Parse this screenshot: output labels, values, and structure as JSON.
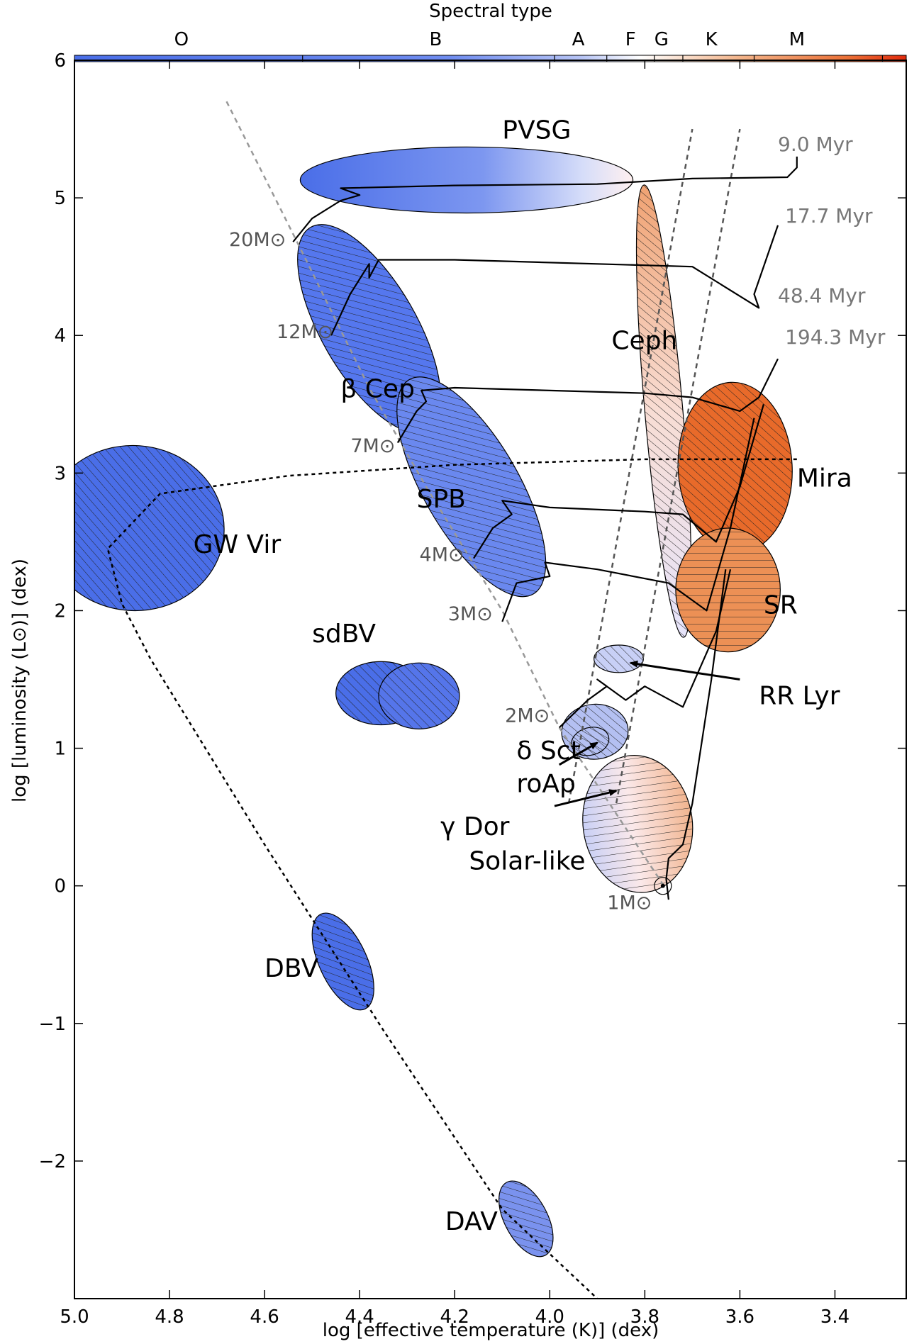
{
  "chart_data": {
    "type": "scatter",
    "title": "",
    "xlabel": "log [effective temperature (K)] (dex)",
    "ylabel": "log [luminosity (L⊙)] (dex)",
    "spectral_label": "Spectral type",
    "xlim": [
      5.0,
      3.25
    ],
    "ylim": [
      -3.0,
      6.0
    ],
    "x_inverted": true,
    "x_ticks": [
      5.0,
      4.8,
      4.6,
      4.4,
      4.2,
      4.0,
      3.8,
      3.6,
      3.4
    ],
    "x_tick_labels": [
      "5.0",
      "4.8",
      "4.6",
      "4.4",
      "4.2",
      "4.0",
      "3.8",
      "3.6",
      "3.4"
    ],
    "y_ticks": [
      6,
      5,
      4,
      3,
      2,
      1,
      0,
      -1,
      -2
    ],
    "y_tick_labels": [
      "6",
      "5",
      "4",
      "3",
      "2",
      "1",
      "0",
      "−1",
      "−2"
    ],
    "spectral_types": [
      {
        "label": "O",
        "x": 4.775
      },
      {
        "label": "B",
        "x": 4.24
      },
      {
        "label": "A",
        "x": 3.94
      },
      {
        "label": "F",
        "x": 3.83
      },
      {
        "label": "G",
        "x": 3.765
      },
      {
        "label": "K",
        "x": 3.66
      },
      {
        "label": "M",
        "x": 3.48
      }
    ],
    "spectral_boundaries": [
      4.52,
      3.99,
      3.88,
      3.78,
      3.72,
      3.57,
      3.3
    ],
    "colors": {
      "hot": "#4a6ee8",
      "mid": "#ffffff",
      "cool": "#e85f1c",
      "m_end": "#e22a0c"
    },
    "regions": [
      {
        "name": "PVSG",
        "x": 4.175,
        "y": 5.13,
        "w": 0.35,
        "h": 0.24,
        "angle": 0,
        "fill": "gradient-hot",
        "hatch": "none"
      },
      {
        "name": "β Cep",
        "x": 4.38,
        "y": 4.05,
        "w": 0.1,
        "h": 0.85,
        "angle": -30,
        "fill": "#5577ee",
        "hatch": "diag"
      },
      {
        "name": "SPB",
        "x": 4.165,
        "y": 2.9,
        "w": 0.1,
        "h": 0.9,
        "angle": -30,
        "fill": "#6a88ef",
        "hatch": "diag"
      },
      {
        "name": "Ceph",
        "x": 3.76,
        "y": 3.45,
        "w": 0.04,
        "h": 1.65,
        "angle": -5,
        "fill": "gradient-ceph",
        "hatch": "diag"
      },
      {
        "name": "GW Vir",
        "x": 4.875,
        "y": 2.6,
        "w": 0.19,
        "h": 0.6,
        "angle": 4,
        "fill": "#4a6ee8",
        "hatch": "diag"
      },
      {
        "name": "sdBV",
        "x": 4.355,
        "y": 1.4,
        "w": 0.095,
        "h": 0.23,
        "angle": 0,
        "fill": "#4a6ee8",
        "hatch": "diag"
      },
      {
        "name": "sdBV-2",
        "x": 4.275,
        "y": 1.38,
        "w": 0.085,
        "h": 0.24,
        "angle": 0,
        "fill": "#5575ea",
        "hatch": "diag"
      },
      {
        "name": "Mira",
        "x": 3.61,
        "y": 3.04,
        "w": 0.12,
        "h": 0.62,
        "angle": -3,
        "fill": "#e86a2a",
        "hatch": "diag"
      },
      {
        "name": "SR",
        "x": 3.625,
        "y": 2.15,
        "w": 0.11,
        "h": 0.45,
        "angle": 0,
        "fill": "#ec9055",
        "hatch": "horiz"
      },
      {
        "name": "RR Lyr",
        "x": 3.855,
        "y": 1.65,
        "w": 0.052,
        "h": 0.1,
        "angle": 0,
        "fill": "#c8d0f6",
        "hatch": "diag"
      },
      {
        "name": "δ Sct",
        "x": 3.905,
        "y": 1.12,
        "w": 0.07,
        "h": 0.2,
        "angle": -5,
        "fill": "#b4c0f2",
        "hatch": "diag"
      },
      {
        "name": "roAp",
        "x": 3.915,
        "y": 1.05,
        "w": 0.04,
        "h": 0.1,
        "angle": -15,
        "fill": "none",
        "hatch": "diag"
      },
      {
        "name": "γ Dor",
        "x": 3.855,
        "y": 0.7,
        "w": 0.03,
        "h": 0.13,
        "angle": -10,
        "fill": "none",
        "hatch": "diag"
      },
      {
        "name": "Solar-like",
        "x": 3.815,
        "y": 0.45,
        "w": 0.115,
        "h": 0.5,
        "angle": -8,
        "fill": "gradient-solar",
        "hatch": "horiz"
      },
      {
        "name": "DBV",
        "x": 4.435,
        "y": -0.55,
        "w": 0.05,
        "h": 0.38,
        "angle": -25,
        "fill": "#4a6ee8",
        "hatch": "diag"
      },
      {
        "name": "DAV",
        "x": 4.05,
        "y": -2.42,
        "w": 0.045,
        "h": 0.3,
        "angle": -28,
        "fill": "#7a92ee",
        "hatch": "diag"
      }
    ],
    "labels": [
      {
        "text": "PVSG",
        "x": 4.1,
        "y": 5.43,
        "size": 36
      },
      {
        "text": "β Cep",
        "x": 4.44,
        "y": 3.55,
        "size": 36
      },
      {
        "text": "SPB",
        "x": 4.28,
        "y": 2.75,
        "size": 36
      },
      {
        "text": "Ceph",
        "x": 3.87,
        "y": 3.9,
        "size": 36
      },
      {
        "text": "GW Vir",
        "x": 4.75,
        "y": 2.42,
        "size": 36
      },
      {
        "text": "sdBV",
        "x": 4.5,
        "y": 1.77,
        "size": 36
      },
      {
        "text": "Mira",
        "x": 3.48,
        "y": 2.9,
        "size": 36
      },
      {
        "text": "SR",
        "x": 3.55,
        "y": 1.98,
        "size": 36
      },
      {
        "text": "RR Lyr",
        "x": 3.56,
        "y": 1.32,
        "size": 36
      },
      {
        "text": "δ Sct",
        "x": 4.07,
        "y": 0.92,
        "size": 36
      },
      {
        "text": "roAp",
        "x": 4.07,
        "y": 0.68,
        "size": 36
      },
      {
        "text": "γ Dor",
        "x": 4.23,
        "y": 0.37,
        "size": 36
      },
      {
        "text": "Solar-like",
        "x": 4.17,
        "y": 0.12,
        "size": 36
      },
      {
        "text": "DBV",
        "x": 4.6,
        "y": -0.66,
        "size": 36
      },
      {
        "text": "DAV",
        "x": 4.22,
        "y": -2.5,
        "size": 36
      }
    ],
    "ages": [
      {
        "text": "9.0 Myr",
        "x": 3.52,
        "y": 5.34
      },
      {
        "text": "17.7 Myr",
        "x": 3.505,
        "y": 4.82
      },
      {
        "text": "48.4 Myr",
        "x": 3.52,
        "y": 4.24
      },
      {
        "text": "194.3 Myr",
        "x": 3.505,
        "y": 3.94
      }
    ],
    "masses": [
      {
        "text": "20M⊙",
        "x": 4.555,
        "y": 4.65
      },
      {
        "text": "12M⊙",
        "x": 4.455,
        "y": 3.98
      },
      {
        "text": "7M⊙",
        "x": 4.325,
        "y": 3.15
      },
      {
        "text": "4M⊙",
        "x": 4.18,
        "y": 2.36
      },
      {
        "text": "3M⊙",
        "x": 4.12,
        "y": 1.93
      },
      {
        "text": "2M⊙",
        "x": 4.0,
        "y": 1.19
      },
      {
        "text": "1M⊙",
        "x": 3.785,
        "y": -0.17
      }
    ],
    "zams_line": [
      [
        4.68,
        5.7
      ],
      [
        4.52,
        4.6
      ],
      [
        4.38,
        3.62
      ],
      [
        4.26,
        2.9
      ],
      [
        4.1,
        2.0
      ],
      [
        3.98,
        1.15
      ],
      [
        3.76,
        0.0
      ]
    ],
    "instability_strip": [
      {
        "from": [
          3.96,
          0.6
        ],
        "to": [
          3.7,
          5.5
        ]
      },
      {
        "from": [
          3.86,
          0.6
        ],
        "to": [
          3.6,
          5.5
        ]
      }
    ],
    "wd_sequence": [
      [
        3.48,
        3.1
      ],
      [
        3.8,
        3.1
      ],
      [
        4.2,
        3.06
      ],
      [
        4.55,
        2.98
      ],
      [
        4.82,
        2.85
      ],
      [
        4.93,
        2.45
      ],
      [
        4.9,
        2.05
      ],
      [
        4.84,
        1.65
      ],
      [
        4.6,
        0.3
      ],
      [
        4.35,
        -1.05
      ],
      [
        4.1,
        -2.35
      ],
      [
        3.9,
        -3.0
      ]
    ],
    "tracks": [
      {
        "name": "20M⊙",
        "points": [
          [
            4.54,
            4.68
          ],
          [
            4.5,
            4.85
          ],
          [
            4.44,
            4.98
          ],
          [
            4.4,
            5.02
          ],
          [
            4.44,
            5.07
          ],
          [
            4.2,
            5.09
          ],
          [
            3.9,
            5.1
          ],
          [
            3.7,
            5.14
          ],
          [
            3.5,
            5.15
          ],
          [
            3.48,
            5.22
          ],
          [
            3.48,
            5.3
          ]
        ]
      },
      {
        "name": "12M⊙",
        "points": [
          [
            4.46,
            4.0
          ],
          [
            4.42,
            4.3
          ],
          [
            4.38,
            4.52
          ],
          [
            4.38,
            4.42
          ],
          [
            4.36,
            4.55
          ],
          [
            4.2,
            4.55
          ],
          [
            3.9,
            4.52
          ],
          [
            3.7,
            4.5
          ],
          [
            3.56,
            4.2
          ],
          [
            3.57,
            4.3
          ],
          [
            3.52,
            4.8
          ]
        ]
      },
      {
        "name": "7M⊙",
        "points": [
          [
            4.32,
            3.22
          ],
          [
            4.28,
            3.45
          ],
          [
            4.26,
            3.52
          ],
          [
            4.27,
            3.6
          ],
          [
            4.2,
            3.62
          ],
          [
            3.8,
            3.58
          ],
          [
            3.7,
            3.55
          ],
          [
            3.6,
            3.45
          ],
          [
            3.56,
            3.55
          ],
          [
            3.52,
            3.83
          ]
        ]
      },
      {
        "name": "4M⊙",
        "points": [
          [
            4.16,
            2.38
          ],
          [
            4.12,
            2.6
          ],
          [
            4.08,
            2.7
          ],
          [
            4.1,
            2.8
          ],
          [
            4.0,
            2.75
          ],
          [
            3.8,
            2.72
          ],
          [
            3.72,
            2.7
          ],
          [
            3.65,
            2.5
          ],
          [
            3.6,
            2.9
          ],
          [
            3.55,
            3.5
          ]
        ]
      },
      {
        "name": "3M⊙",
        "points": [
          [
            4.1,
            1.92
          ],
          [
            4.07,
            2.2
          ],
          [
            4.0,
            2.25
          ],
          [
            4.01,
            2.35
          ],
          [
            3.9,
            2.3
          ],
          [
            3.75,
            2.2
          ],
          [
            3.67,
            2.0
          ],
          [
            3.62,
            2.6
          ],
          [
            3.57,
            3.4
          ]
        ]
      },
      {
        "name": "2M⊙",
        "points": [
          [
            3.98,
            1.15
          ],
          [
            3.92,
            1.35
          ],
          [
            3.88,
            1.45
          ],
          [
            3.9,
            1.5
          ],
          [
            3.84,
            1.35
          ],
          [
            3.8,
            1.45
          ],
          [
            3.72,
            1.3
          ],
          [
            3.65,
            1.85
          ],
          [
            3.62,
            2.3
          ]
        ]
      },
      {
        "name": "1M⊙",
        "points": [
          [
            3.75,
            -0.1
          ],
          [
            3.755,
            0.05
          ],
          [
            3.75,
            0.2
          ],
          [
            3.72,
            0.3
          ],
          [
            3.7,
            0.6
          ],
          [
            3.66,
            1.5
          ],
          [
            3.63,
            2.3
          ]
        ]
      }
    ],
    "arrows": [
      {
        "from": [
          3.6,
          1.5
        ],
        "to": [
          3.83,
          1.62
        ],
        "label": "RR Lyr"
      },
      {
        "from": [
          3.98,
          0.88
        ],
        "to": [
          3.9,
          1.04
        ],
        "label": "roAp"
      },
      {
        "from": [
          3.99,
          0.58
        ],
        "to": [
          3.86,
          0.69
        ],
        "label": "γ Dor"
      }
    ],
    "sun": {
      "x": 3.762,
      "y": 0.0
    }
  }
}
